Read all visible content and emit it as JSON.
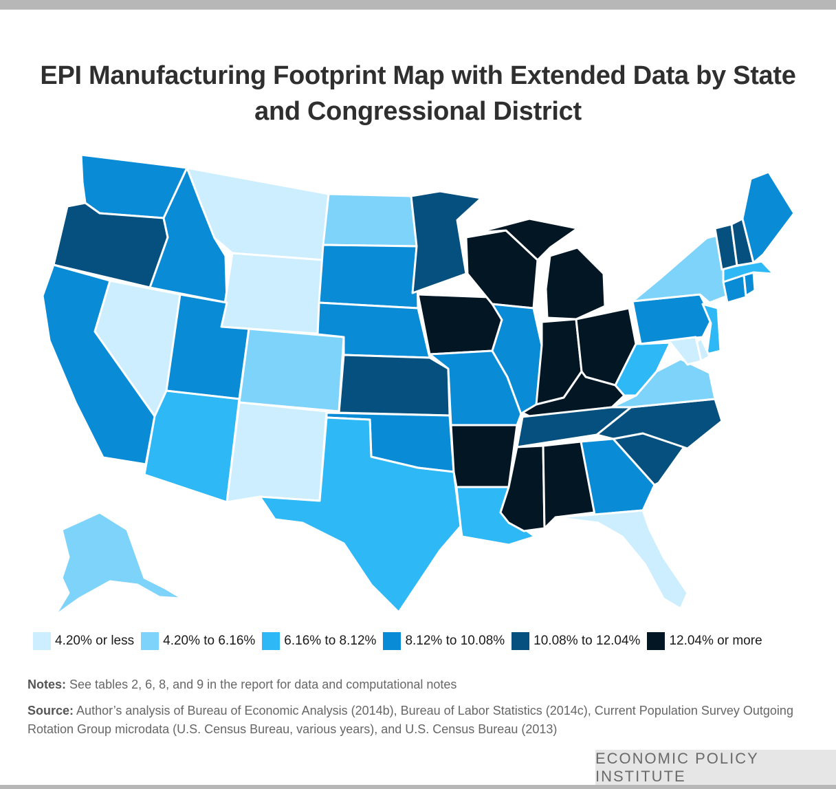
{
  "title": "EPI Manufacturing Footprint Map with Extended Data by State and Congressional District",
  "colors": {
    "c1": "#cdeeff",
    "c2": "#7ed3fb",
    "c3": "#2eb8f5",
    "c4": "#0a8bd6",
    "c5": "#05507e",
    "c6": "#021624",
    "frame": "#b7b7b7"
  },
  "map_data": {
    "type": "choropleth",
    "region": "United States",
    "states": {
      "WA": "c4",
      "OR": "c5",
      "CA": "c4",
      "ID": "c4",
      "NV": "c1",
      "AZ": "c3",
      "UT": "c4",
      "MT": "c1",
      "WY": "c1",
      "CO": "c2",
      "NM": "c1",
      "ND": "c2",
      "SD": "c4",
      "NE": "c4",
      "KS": "c5",
      "OK": "c4",
      "TX": "c3",
      "MN": "c5",
      "IA": "c6",
      "MO": "c4",
      "AR": "c6",
      "LA": "c3",
      "WI": "c6",
      "IL": "c4",
      "MI": "c6",
      "IN": "c6",
      "OH": "c6",
      "KY": "c6",
      "TN": "c5",
      "MS": "c6",
      "AL": "c6",
      "GA": "c4",
      "FL": "c1",
      "SC": "c5",
      "NC": "c5",
      "VA": "c2",
      "WV": "c3",
      "PA": "c4",
      "NY": "c2",
      "VT": "c5",
      "NH": "c5",
      "ME": "c4",
      "MA": "c3",
      "CT": "c4",
      "RI": "c4",
      "NJ": "c3",
      "DE": "c1",
      "MD": "c1",
      "AK": "c2"
    }
  },
  "legend": [
    {
      "label": "4.20% or less",
      "color": "#cdeeff"
    },
    {
      "label": "4.20% to 6.16%",
      "color": "#7ed3fb"
    },
    {
      "label": "6.16% to 8.12%",
      "color": "#2eb8f5"
    },
    {
      "label": "8.12% to 10.08%",
      "color": "#0a8bd6"
    },
    {
      "label": "10.08% to 12.04%",
      "color": "#05507e"
    },
    {
      "label": "12.04% or more",
      "color": "#021624"
    }
  ],
  "notes": {
    "label": "Notes:",
    "text": "See tables 2, 6, 8, and 9 in the report for data and computational notes"
  },
  "source": {
    "label": "Source:",
    "text": "Author’s analysis of Bureau of Economic Analysis (2014b), Bureau of Labor Statistics (2014c), Current Population Survey Outgoing Rotation Group microdata (U.S. Census Bureau, various years), and U.S. Census Bureau (2013)"
  },
  "footer": {
    "org": "ECONOMIC POLICY INSTITUTE"
  }
}
